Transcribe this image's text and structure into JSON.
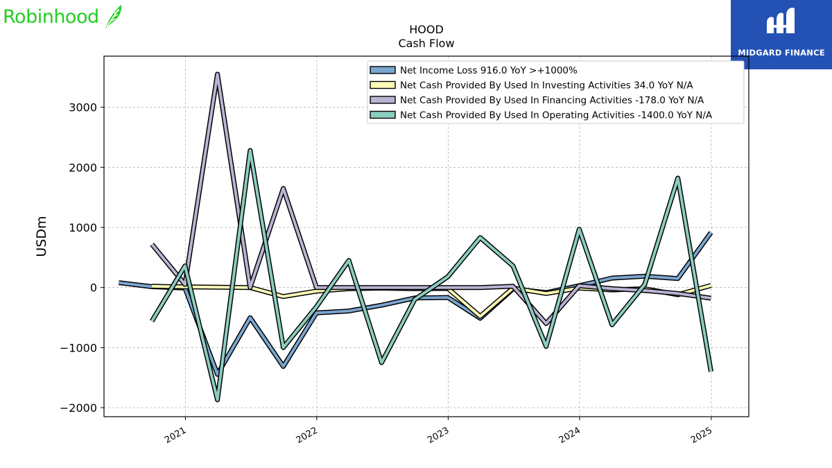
{
  "brand": {
    "name": "Robinhood",
    "icon": "feather-icon",
    "color": "#21ce1f"
  },
  "badge": {
    "name": "MIDGARD FINANCE",
    "icon": "midgard-logo-icon",
    "background": "#2352b4"
  },
  "chart_data": {
    "type": "line",
    "title": "HOOD",
    "subtitle": "Cash Flow",
    "xlabel": "",
    "ylabel": "USDm",
    "ylim": [
      -2150,
      3850
    ],
    "xlim": [
      "2020-05-20",
      "2025-04-15"
    ],
    "yticks": [
      -2000,
      -1000,
      0,
      1000,
      2000,
      3000
    ],
    "ytick_labels": [
      "−2000",
      "−1000",
      "0",
      "1000",
      "2000",
      "3000"
    ],
    "xticks": [
      "2021-01-01",
      "2022-01-01",
      "2023-01-01",
      "2024-01-01",
      "2025-01-01"
    ],
    "xtick_labels": [
      "2021",
      "2022",
      "2023",
      "2024",
      "2025"
    ],
    "grid": true,
    "legend_position": "top-right",
    "series": [
      {
        "name": "Net Income Loss  916.0 YoY >+1000%",
        "color": "#7aa6d0",
        "x": [
          "2020-06-30",
          "2020-09-30",
          "2020-12-31",
          "2021-03-31",
          "2021-06-30",
          "2021-09-30",
          "2021-12-31",
          "2022-03-31",
          "2022-06-30",
          "2022-09-30",
          "2022-12-31",
          "2023-03-31",
          "2023-06-30",
          "2023-09-30",
          "2023-12-31",
          "2024-03-31",
          "2024-06-30",
          "2024-09-30",
          "2024-12-31"
        ],
        "y": [
          80,
          13,
          -8,
          -1445,
          -502,
          -1314,
          -423,
          -392,
          -295,
          -175,
          -166,
          -511,
          -25,
          -85,
          30,
          157,
          188,
          150,
          916
        ]
      },
      {
        "name": "Net Cash Provided By Used In Investing Activities  34.0 YoY N/A",
        "color": "#fdfbb6",
        "x": [
          "2020-09-30",
          "2020-12-31",
          "2021-03-31",
          "2021-06-30",
          "2021-09-30",
          "2021-12-31",
          "2022-03-31",
          "2022-06-30",
          "2022-09-30",
          "2022-12-31",
          "2023-03-31",
          "2023-06-30",
          "2023-09-30",
          "2023-12-31",
          "2024-03-31",
          "2024-06-30",
          "2024-09-30",
          "2024-12-31"
        ],
        "y": [
          20,
          10,
          5,
          0,
          -150,
          -60,
          -20,
          -10,
          -20,
          -15,
          -480,
          -10,
          -100,
          -10,
          -40,
          -20,
          -120,
          34
        ]
      },
      {
        "name": "Net Cash Provided By Used In Financing Activities  -178.0 YoY N/A",
        "color": "#b9b4d4",
        "x": [
          "2020-09-30",
          "2020-12-31",
          "2021-03-31",
          "2021-06-30",
          "2021-09-30",
          "2021-12-31",
          "2022-03-31",
          "2022-06-30",
          "2022-09-30",
          "2022-12-31",
          "2023-03-31",
          "2023-06-30",
          "2023-09-30",
          "2023-12-31",
          "2024-03-31",
          "2024-06-30",
          "2024-09-30",
          "2024-12-31"
        ],
        "y": [
          720,
          50,
          3550,
          0,
          1650,
          0,
          0,
          0,
          0,
          0,
          0,
          20,
          -600,
          30,
          -20,
          -50,
          -100,
          -178
        ]
      },
      {
        "name": "Net Cash Provided By Used In Operating Activities  -1400.0 YoY N/A",
        "color": "#8ccdc0",
        "x": [
          "2020-09-30",
          "2020-12-31",
          "2021-03-31",
          "2021-06-30",
          "2021-09-30",
          "2021-12-31",
          "2022-03-31",
          "2022-06-30",
          "2022-09-30",
          "2022-12-31",
          "2023-03-31",
          "2023-06-30",
          "2023-09-30",
          "2023-12-31",
          "2024-03-31",
          "2024-06-30",
          "2024-09-30",
          "2024-12-31"
        ],
        "y": [
          -560,
          360,
          -1870,
          2280,
          -1000,
          -320,
          450,
          -1250,
          -200,
          180,
          830,
          360,
          -980,
          970,
          -620,
          50,
          1820,
          -1400
        ]
      }
    ]
  }
}
